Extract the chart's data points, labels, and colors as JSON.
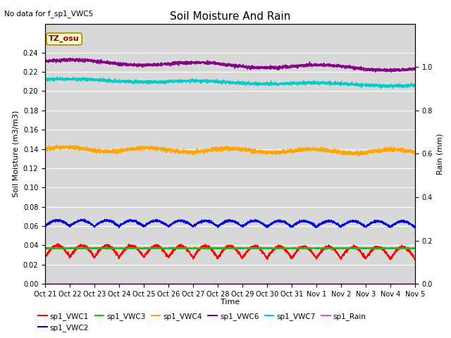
{
  "title": "Soil Moisture And Rain",
  "no_data_text": "No data for f_sp1_VWC5",
  "ylabel_left": "Soil Moisture (m3/m3)",
  "ylabel_right": "Rain (mm)",
  "xlabel": "Time",
  "background_color": "#d8d8d8",
  "ylim_left": [
    0.0,
    0.27
  ],
  "ylim_right": [
    0.0,
    1.2
  ],
  "yticks_left": [
    0.0,
    0.02,
    0.04,
    0.06,
    0.08,
    0.1,
    0.12,
    0.14,
    0.16,
    0.18,
    0.2,
    0.22,
    0.24
  ],
  "yticks_right": [
    0.0,
    0.2,
    0.4,
    0.6,
    0.8,
    1.0
  ],
  "x_tick_labels": [
    "Oct 21",
    "Oct 22",
    "Oct 23",
    "Oct 24",
    "Oct 25",
    "Oct 26",
    "Oct 27",
    "Oct 28",
    "Oct 29",
    "Oct 30",
    "Oct 31",
    "Nov 1",
    "Nov 2",
    "Nov 3",
    "Nov 4",
    "Nov 5"
  ],
  "n_points": 3360,
  "series": {
    "sp1_VWC1": {
      "color": "#ff0000",
      "base": 0.028,
      "amplitude": 0.012
    },
    "sp1_VWC2": {
      "color": "#0000dd",
      "base": 0.06,
      "amplitude": 0.006
    },
    "sp1_VWC3": {
      "color": "#00cc00",
      "base": 0.037,
      "amplitude": 0.0005
    },
    "sp1_VWC4": {
      "color": "#ffa500",
      "base": 0.14,
      "amplitude": 0.002
    },
    "sp1_VWC6": {
      "color": "#880088",
      "base": 0.231,
      "amplitude": 0.002
    },
    "sp1_VWC7": {
      "color": "#00cccc",
      "base": 0.212,
      "amplitude": 0.002
    },
    "sp1_Rain": {
      "color": "#ff44bb",
      "base": 0.0,
      "amplitude": 0.0
    }
  },
  "legend_order": [
    "sp1_VWC1",
    "sp1_VWC2",
    "sp1_VWC3",
    "sp1_VWC4",
    "sp1_VWC6",
    "sp1_VWC7",
    "sp1_Rain"
  ],
  "tz_box_text": "TZ_osu",
  "tz_box_color": "#ffffcc",
  "tz_box_border": "#aa8800",
  "title_fontsize": 11,
  "tick_fontsize": 7,
  "label_fontsize": 8
}
